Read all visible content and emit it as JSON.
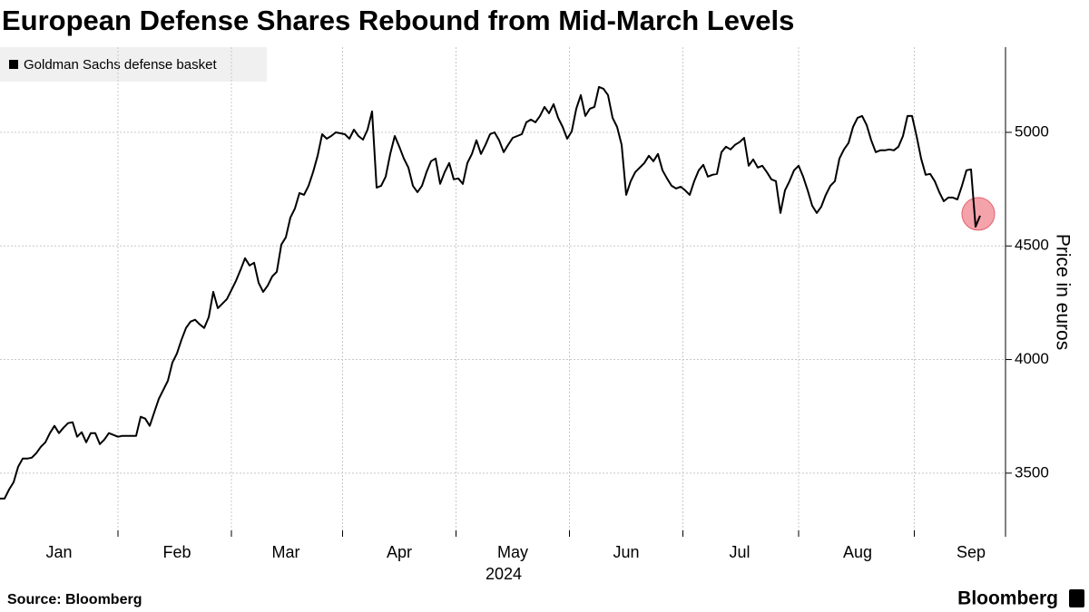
{
  "chart_data": {
    "type": "line",
    "title": "European Defense Shares Rebound from Mid-March Levels",
    "x_axis_year": "2024",
    "ylabel": "Price in euros",
    "source": "Source: Bloomberg",
    "brand": "Bloomberg",
    "legend": "top-left",
    "grid": true,
    "ylim": [
      3220,
      5375
    ],
    "yticks": [
      3500,
      4000,
      4500,
      5000
    ],
    "categories": [
      null,
      null,
      null,
      null,
      null,
      null,
      null,
      null,
      null,
      null,
      null,
      null,
      null,
      "Jan",
      null,
      null,
      null,
      null,
      null,
      null,
      null,
      null,
      null,
      null,
      null,
      null,
      null,
      null,
      null,
      null,
      null,
      null,
      null,
      null,
      null,
      null,
      null,
      null,
      null,
      "Feb",
      null,
      null,
      null,
      null,
      null,
      null,
      null,
      null,
      null,
      null,
      null,
      null,
      null,
      null,
      null,
      null,
      null,
      null,
      null,
      null,
      null,
      null,
      null,
      "Mar",
      null,
      null,
      null,
      null,
      null,
      null,
      null,
      null,
      null,
      null,
      null,
      null,
      null,
      null,
      null,
      null,
      null,
      null,
      null,
      null,
      null,
      null,
      null,
      null,
      "Apr",
      null,
      null,
      null,
      null,
      null,
      null,
      null,
      null,
      null,
      null,
      null,
      null,
      null,
      null,
      null,
      null,
      null,
      null,
      null,
      null,
      null,
      null,
      null,
      null,
      "May",
      null,
      null,
      null,
      null,
      null,
      null,
      null,
      null,
      null,
      null,
      null,
      null,
      null,
      null,
      null,
      null,
      null,
      null,
      null,
      null,
      null,
      null,
      null,
      null,
      "Jun",
      null,
      null,
      null,
      null,
      null,
      null,
      null,
      null,
      null,
      null,
      null,
      null,
      null,
      null,
      null,
      null,
      null,
      null,
      null,
      null,
      null,
      null,
      null,
      null,
      "Jul",
      null,
      null,
      null,
      null,
      null,
      null,
      null,
      null,
      null,
      null,
      null,
      null,
      null,
      null,
      null,
      null,
      null,
      null,
      null,
      null,
      null,
      null,
      null,
      null,
      null,
      "Aug",
      null,
      null,
      null,
      null,
      null,
      null,
      null,
      null,
      null,
      null,
      null,
      null,
      null,
      null,
      null,
      null,
      null,
      null,
      null,
      null,
      null,
      null,
      null,
      null,
      "Sep",
      null,
      null
    ],
    "series": [
      {
        "name": "Goldman Sachs defense basket",
        "color": "#000000",
        "values": [
          3388,
          3388,
          3428,
          3460,
          3528,
          3564,
          3564,
          3568,
          3588,
          3616,
          3636,
          3676,
          3708,
          3676,
          3700,
          3720,
          3724,
          3660,
          3680,
          3636,
          3676,
          3676,
          3628,
          3648,
          3676,
          3668,
          3660,
          3664,
          3664,
          3664,
          3664,
          3748,
          3740,
          3708,
          3768,
          3827,
          3867,
          3907,
          3987,
          4027,
          4087,
          4139,
          4167,
          4175,
          4155,
          4139,
          4186,
          4298,
          4226,
          4246,
          4266,
          4306,
          4346,
          4394,
          4446,
          4414,
          4426,
          4338,
          4298,
          4326,
          4366,
          4386,
          4506,
          4538,
          4625,
          4665,
          4733,
          4725,
          4765,
          4825,
          4897,
          4992,
          4972,
          4984,
          5000,
          4996,
          4992,
          4972,
          5012,
          4984,
          4968,
          5012,
          5092,
          4757,
          4765,
          4805,
          4905,
          4984,
          4937,
          4885,
          4845,
          4765,
          4737,
          4765,
          4825,
          4873,
          4885,
          4773,
          4825,
          4865,
          4793,
          4797,
          4773,
          4865,
          4905,
          4965,
          4905,
          4945,
          4992,
          5000,
          4965,
          4913,
          4945,
          4976,
          4984,
          4992,
          5044,
          5056,
          5044,
          5072,
          5112,
          5084,
          5124,
          5064,
          5024,
          4972,
          5004,
          5104,
          5164,
          5072,
          5104,
          5112,
          5200,
          5192,
          5164,
          5064,
          5024,
          4945,
          4725,
          4785,
          4825,
          4845,
          4865,
          4897,
          4873,
          4905,
          4833,
          4797,
          4765,
          4753,
          4761,
          4745,
          4725,
          4785,
          4833,
          4857,
          4805,
          4813,
          4817,
          4913,
          4937,
          4925,
          4945,
          4957,
          4976,
          4853,
          4881,
          4845,
          4853,
          4825,
          4793,
          4785,
          4645,
          4745,
          4785,
          4833,
          4853,
          4805,
          4745,
          4677,
          4645,
          4673,
          4725,
          4765,
          4785,
          4885,
          4925,
          4953,
          5024,
          5064,
          5072,
          5032,
          4965,
          4913,
          4921,
          4921,
          4925,
          4921,
          4937,
          4984,
          5072,
          5072,
          4984,
          4885,
          4813,
          4817,
          4785,
          4737,
          4697,
          4713,
          4713,
          4705,
          4765,
          4833,
          4837,
          4585,
          4633
        ]
      }
    ]
  }
}
